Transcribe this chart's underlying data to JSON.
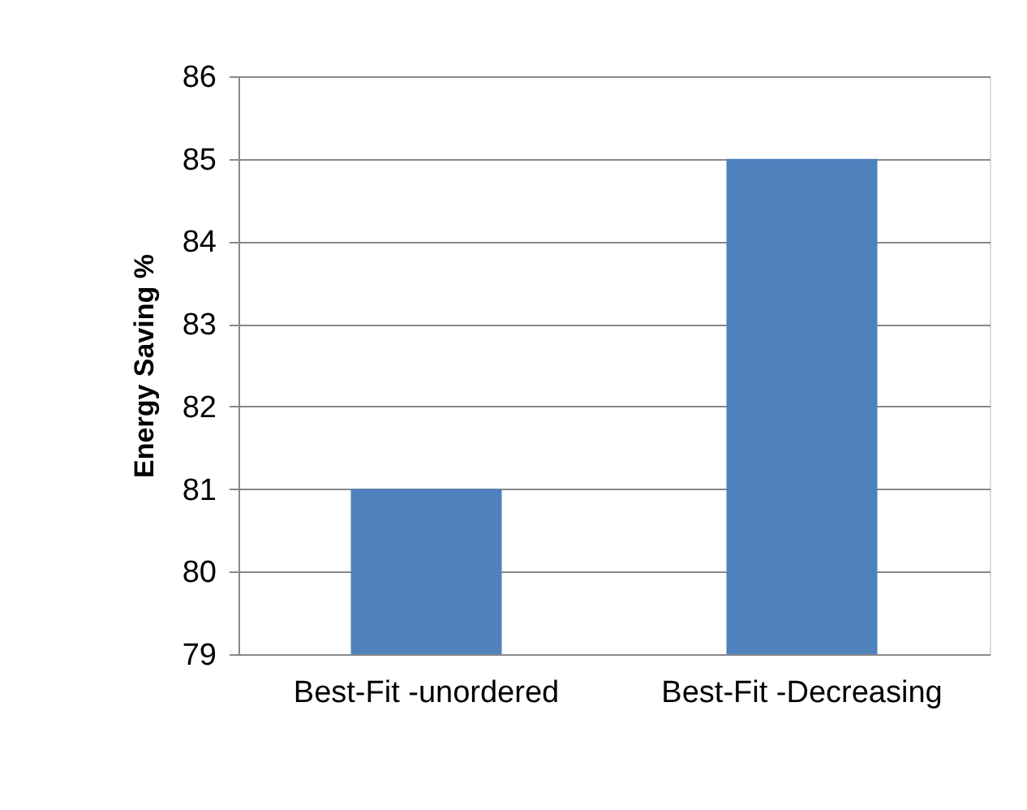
{
  "chart_data": {
    "type": "bar",
    "ylabel": "Energy Saving %",
    "categories": [
      "Best-Fit -unordered",
      "Best-Fit -Decreasing"
    ],
    "values": [
      81,
      85
    ],
    "color": "#4f81bd",
    "ylim": [
      79,
      86
    ],
    "yticks": [
      79,
      80,
      81,
      82,
      83,
      84,
      85,
      86
    ],
    "grid": "y"
  }
}
